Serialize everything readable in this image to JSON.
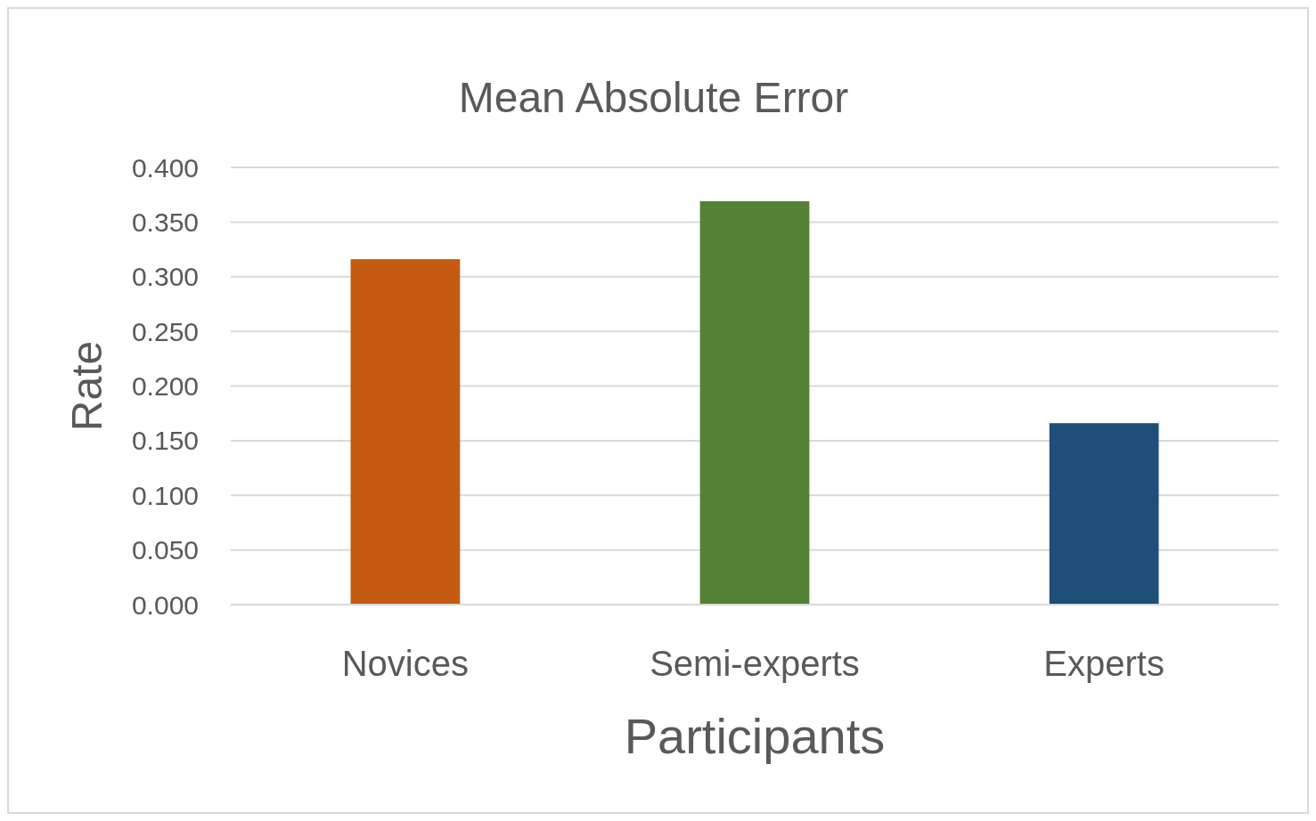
{
  "chart_data": {
    "type": "bar",
    "title": "Mean Absolute Error",
    "xlabel": "Participants",
    "ylabel": "Rate",
    "categories": [
      "Novices",
      "Semi-experts",
      "Experts"
    ],
    "values": [
      0.316,
      0.369,
      0.166
    ],
    "colors": [
      "#c55a11",
      "#538135",
      "#1f4e79"
    ],
    "ylim": [
      0,
      0.4
    ],
    "yticks": [
      {
        "value": 0,
        "label": "0.000"
      },
      {
        "value": 0.05,
        "label": "0.050"
      },
      {
        "value": 0.1,
        "label": "0.100"
      },
      {
        "value": 0.15,
        "label": "0.150"
      },
      {
        "value": 0.2,
        "label": "0.200"
      },
      {
        "value": 0.25,
        "label": "0.250"
      },
      {
        "value": 0.3,
        "label": "0.300"
      },
      {
        "value": 0.35,
        "label": "0.350"
      },
      {
        "value": 0.4,
        "label": "0.400"
      }
    ],
    "grid": "y"
  }
}
